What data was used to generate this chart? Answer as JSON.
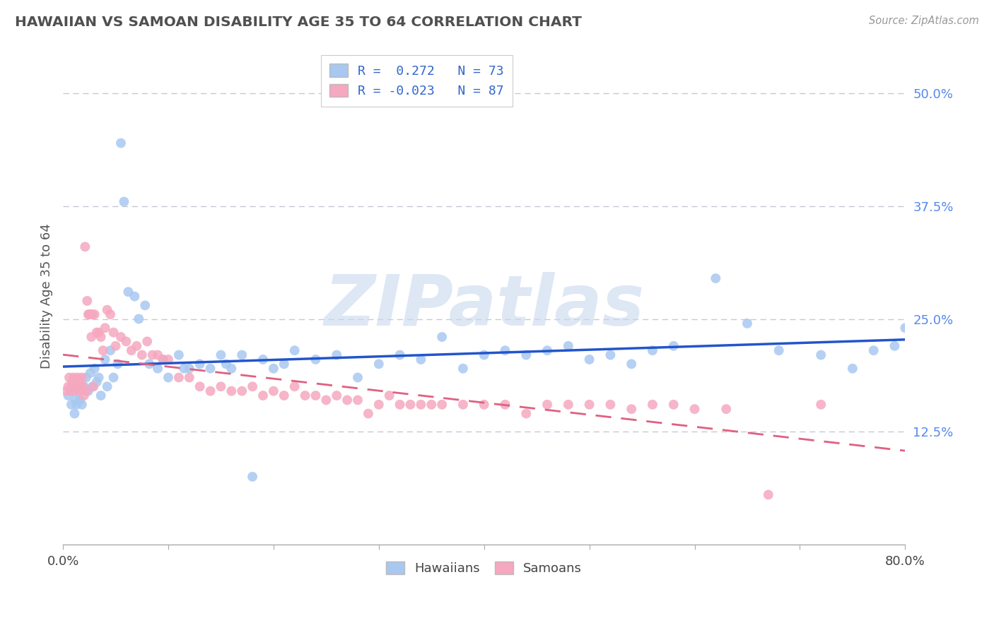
{
  "title": "HAWAIIAN VS SAMOAN DISABILITY AGE 35 TO 64 CORRELATION CHART",
  "source": "Source: ZipAtlas.com",
  "ylabel": "Disability Age 35 to 64",
  "xlim": [
    0.0,
    0.8
  ],
  "ylim": [
    0.0,
    0.55
  ],
  "xticks": [
    0.0,
    0.1,
    0.2,
    0.3,
    0.4,
    0.5,
    0.6,
    0.7,
    0.8
  ],
  "xticklabels": [
    "0.0%",
    "",
    "",
    "",
    "",
    "",
    "",
    "",
    "80.0%"
  ],
  "yticks_right": [
    0.125,
    0.25,
    0.375,
    0.5
  ],
  "ytick_right_labels": [
    "12.5%",
    "25.0%",
    "37.5%",
    "50.0%"
  ],
  "hawaiian_color": "#a8c8f0",
  "samoan_color": "#f5a8c0",
  "trend_hawaiian_color": "#2255cc",
  "trend_samoan_color": "#e06080",
  "watermark_text": "ZIPatlas",
  "watermark_color": "#c8d8ee",
  "background_color": "#ffffff",
  "grid_color": "#c8c8d8",
  "title_color": "#505050",
  "hawaiians_label": "Hawaiians",
  "samoans_label": "Samoans",
  "legend_line1": "R =  0.272   N = 73",
  "legend_line2": "R = -0.023   N = 87",
  "hawaiian_x": [
    0.005,
    0.008,
    0.01,
    0.011,
    0.012,
    0.013,
    0.015,
    0.016,
    0.018,
    0.02,
    0.022,
    0.024,
    0.026,
    0.028,
    0.03,
    0.032,
    0.034,
    0.036,
    0.04,
    0.042,
    0.045,
    0.048,
    0.052,
    0.055,
    0.058,
    0.062,
    0.068,
    0.072,
    0.078,
    0.082,
    0.09,
    0.095,
    0.1,
    0.11,
    0.115,
    0.12,
    0.13,
    0.14,
    0.15,
    0.155,
    0.16,
    0.17,
    0.18,
    0.19,
    0.2,
    0.21,
    0.22,
    0.24,
    0.26,
    0.28,
    0.3,
    0.32,
    0.34,
    0.36,
    0.38,
    0.4,
    0.42,
    0.44,
    0.46,
    0.48,
    0.5,
    0.52,
    0.54,
    0.56,
    0.58,
    0.62,
    0.65,
    0.68,
    0.72,
    0.75,
    0.77,
    0.79,
    0.8
  ],
  "hawaiian_y": [
    0.165,
    0.155,
    0.17,
    0.145,
    0.16,
    0.155,
    0.175,
    0.16,
    0.155,
    0.175,
    0.185,
    0.17,
    0.19,
    0.175,
    0.195,
    0.18,
    0.185,
    0.165,
    0.205,
    0.175,
    0.215,
    0.185,
    0.2,
    0.445,
    0.38,
    0.28,
    0.275,
    0.25,
    0.265,
    0.2,
    0.195,
    0.205,
    0.185,
    0.21,
    0.195,
    0.195,
    0.2,
    0.195,
    0.21,
    0.2,
    0.195,
    0.21,
    0.075,
    0.205,
    0.195,
    0.2,
    0.215,
    0.205,
    0.21,
    0.185,
    0.2,
    0.21,
    0.205,
    0.23,
    0.195,
    0.21,
    0.215,
    0.21,
    0.215,
    0.22,
    0.205,
    0.21,
    0.2,
    0.215,
    0.22,
    0.295,
    0.245,
    0.215,
    0.21,
    0.195,
    0.215,
    0.22,
    0.24
  ],
  "samoan_x": [
    0.003,
    0.005,
    0.006,
    0.007,
    0.008,
    0.009,
    0.01,
    0.011,
    0.012,
    0.013,
    0.014,
    0.015,
    0.016,
    0.017,
    0.018,
    0.019,
    0.02,
    0.021,
    0.022,
    0.023,
    0.024,
    0.025,
    0.026,
    0.027,
    0.028,
    0.029,
    0.03,
    0.032,
    0.034,
    0.036,
    0.038,
    0.04,
    0.042,
    0.045,
    0.048,
    0.05,
    0.055,
    0.06,
    0.065,
    0.07,
    0.075,
    0.08,
    0.085,
    0.09,
    0.095,
    0.1,
    0.11,
    0.12,
    0.13,
    0.14,
    0.15,
    0.16,
    0.17,
    0.18,
    0.19,
    0.2,
    0.21,
    0.22,
    0.23,
    0.24,
    0.25,
    0.26,
    0.27,
    0.28,
    0.29,
    0.3,
    0.31,
    0.32,
    0.33,
    0.34,
    0.35,
    0.36,
    0.38,
    0.4,
    0.42,
    0.44,
    0.46,
    0.48,
    0.5,
    0.52,
    0.54,
    0.56,
    0.58,
    0.6,
    0.63,
    0.67,
    0.72
  ],
  "samoan_y": [
    0.17,
    0.175,
    0.185,
    0.17,
    0.175,
    0.18,
    0.185,
    0.175,
    0.17,
    0.175,
    0.185,
    0.18,
    0.17,
    0.175,
    0.185,
    0.175,
    0.165,
    0.33,
    0.17,
    0.27,
    0.255,
    0.255,
    0.255,
    0.23,
    0.255,
    0.175,
    0.255,
    0.235,
    0.235,
    0.23,
    0.215,
    0.24,
    0.26,
    0.255,
    0.235,
    0.22,
    0.23,
    0.225,
    0.215,
    0.22,
    0.21,
    0.225,
    0.21,
    0.21,
    0.205,
    0.205,
    0.185,
    0.185,
    0.175,
    0.17,
    0.175,
    0.17,
    0.17,
    0.175,
    0.165,
    0.17,
    0.165,
    0.175,
    0.165,
    0.165,
    0.16,
    0.165,
    0.16,
    0.16,
    0.145,
    0.155,
    0.165,
    0.155,
    0.155,
    0.155,
    0.155,
    0.155,
    0.155,
    0.155,
    0.155,
    0.145,
    0.155,
    0.155,
    0.155,
    0.155,
    0.15,
    0.155,
    0.155,
    0.15,
    0.15,
    0.055,
    0.155
  ]
}
